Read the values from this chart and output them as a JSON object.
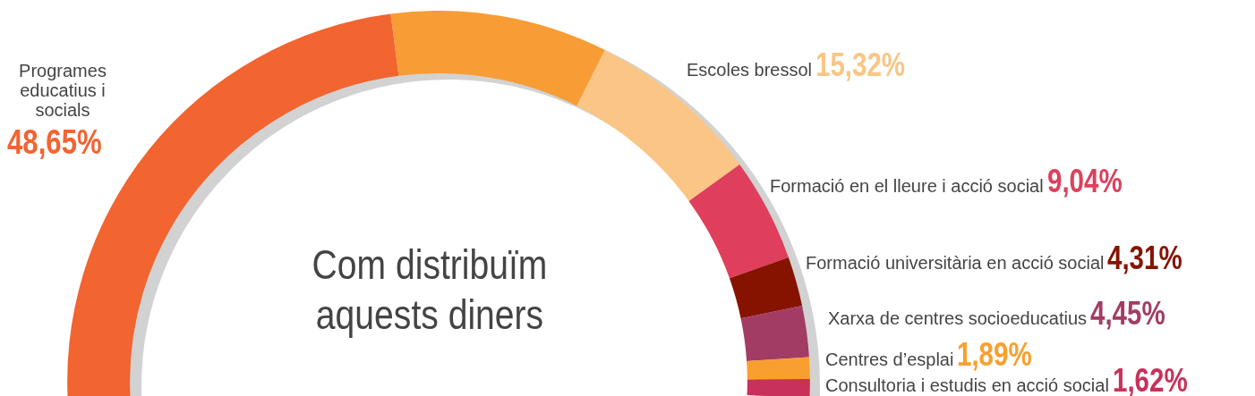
{
  "chart_data": {
    "type": "donut",
    "title": "Com distribuïm aquests diners",
    "categories": [
      "Programes educatius i socials",
      null,
      "Escoles bressol",
      "Formació en el lleure i acció social",
      "Formació universitària en acció social",
      "Xarxa de centres socioeducatius",
      "Centres d’esplai",
      "Consultoria i estudis en acció social"
    ],
    "values": [
      48.65,
      18.9,
      15.32,
      9.04,
      4.31,
      4.45,
      1.89,
      1.62
    ],
    "value_labels": [
      "48,65%",
      null,
      "15,32%",
      "9,04%",
      "4,31%",
      "4,45%",
      "1,89%",
      "1,62%"
    ],
    "colors": [
      "#f26430",
      "#f89c35",
      "#fac585",
      "#df3f5c",
      "#861300",
      "#a33c64",
      "#f99f2f",
      "#c8315a"
    ],
    "legend": false
  }
}
